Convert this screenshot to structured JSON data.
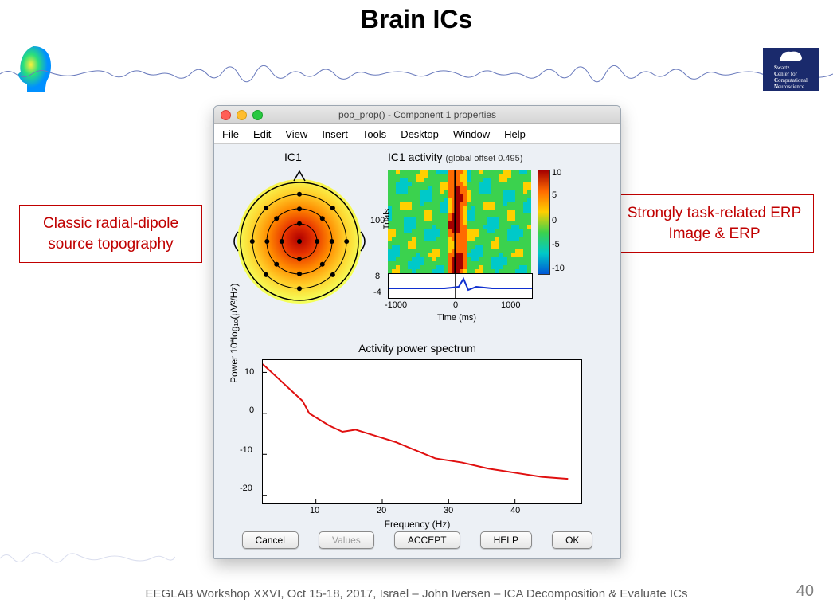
{
  "slide": {
    "title": "Brain ICs",
    "page_number": "40",
    "footer": "EEGLAB Workshop XXVI, Oct 15-18, 2017, Israel – John Iversen – ICA Decomposition & Evaluate ICs"
  },
  "annotations": {
    "left": "Classic radial-dipole source topography",
    "left_underline_word": "radial",
    "right": "Strongly task-related ERP Image & ERP"
  },
  "sccn_logo": {
    "line1": "Swartz",
    "line2": "Center for",
    "line3": "Computational",
    "line4": "Neuroscience"
  },
  "window": {
    "title": "pop_prop() - Component 1 properties",
    "menu": [
      "File",
      "Edit",
      "View",
      "Insert",
      "Tools",
      "Desktop",
      "Window",
      "Help"
    ],
    "buttons": {
      "cancel": "Cancel",
      "values": "Values",
      "accept": "ACCEPT",
      "help": "HELP",
      "ok": "OK"
    }
  },
  "topoplot": {
    "title": "IC1",
    "type": "topography",
    "title_fontsize": 14,
    "gradient_colors": [
      "#f5ff5a",
      "#ffd02a",
      "#ff8a00",
      "#e83400",
      "#b00000"
    ],
    "outline_color": "#000000",
    "electrode_color": "#000000",
    "electrode_rings": [
      0.3,
      0.55,
      0.8
    ],
    "electrodes_per_ring": [
      4,
      8,
      8
    ],
    "center_electrode": true,
    "nose": true,
    "ears": true
  },
  "erpimage": {
    "title": "IC1 activity",
    "subtitle": "(global offset 0.495)",
    "type": "heatmap",
    "ylabel": "Trials",
    "y_ticks": [
      100
    ],
    "x_ticks": [
      -1000,
      0,
      1000
    ],
    "xlabel": "Time (ms)",
    "xlim": [
      -1500,
      1700
    ],
    "colormap": [
      "#0057d6",
      "#00c9c9",
      "#3bd24e",
      "#ffd000",
      "#ff6a00",
      "#a40000"
    ],
    "colorbar_ticks": [
      10,
      5,
      0,
      -5,
      -10
    ],
    "trace_y_ticks": [
      8,
      -4
    ],
    "trace_color": "#1030d0",
    "event_line_color": "#000000"
  },
  "psd": {
    "title": "Activity power spectrum",
    "type": "line",
    "xlabel": "Frequency (Hz)",
    "ylabel": "Power 10*log₁₀(μV²/Hz)",
    "xlim": [
      2,
      50
    ],
    "ylim": [
      -22,
      13
    ],
    "x_ticks": [
      10,
      20,
      30,
      40
    ],
    "y_ticks": [
      10,
      0,
      -10,
      -20
    ],
    "line_color": "#e01010",
    "line_width": 2,
    "background_color": "#ffffff",
    "border_color": "#000000",
    "freq": [
      2,
      4,
      6,
      8,
      9,
      10,
      12,
      14,
      16,
      18,
      20,
      22,
      25,
      28,
      32,
      36,
      40,
      44,
      48
    ],
    "power": [
      12,
      9,
      6,
      3,
      0,
      -1,
      -3,
      -4.5,
      -4,
      -5,
      -6,
      -7,
      -9,
      -11,
      -12,
      -13.5,
      -14.5,
      -15.5,
      -16
    ]
  },
  "colors": {
    "annotation_border": "#c00000",
    "annotation_text": "#c00000",
    "window_bg": "#ecf0f5"
  }
}
